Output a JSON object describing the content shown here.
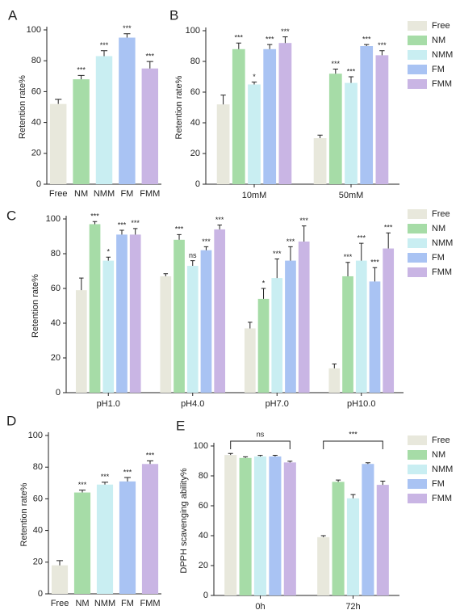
{
  "chart_data": [
    {
      "type": "bar",
      "panel": "A",
      "y_label": "Retention rate%",
      "categories": [
        "Free",
        "NM",
        "NMM",
        "FM",
        "FMM"
      ],
      "values": [
        52,
        68,
        83,
        95,
        75
      ],
      "errors": [
        3,
        2.5,
        3.5,
        2.5,
        4.5
      ],
      "significance": [
        null,
        "***",
        "***",
        "***",
        "***"
      ],
      "colors": [
        "#e8e8dc",
        "#a6dca7",
        "#c9eef2",
        "#a9c3f3",
        "#c9b5e4"
      ],
      "ylim": [
        0,
        100
      ],
      "yticks": [
        0,
        20,
        40,
        60,
        80,
        100
      ]
    },
    {
      "type": "grouped_bar",
      "panel": "B",
      "y_label": "Retention rate%",
      "categories": [
        "10mM",
        "50mM"
      ],
      "series": [
        {
          "name": "Free",
          "color": "#e8e8dc",
          "values": [
            52,
            30
          ],
          "errors": [
            6,
            2
          ],
          "significance": [
            null,
            null
          ]
        },
        {
          "name": "NM",
          "color": "#a6dca7",
          "values": [
            88,
            72
          ],
          "errors": [
            4,
            3
          ],
          "significance": [
            "***",
            "***"
          ]
        },
        {
          "name": "NMM",
          "color": "#c9eef2",
          "values": [
            65,
            66
          ],
          "errors": [
            1.5,
            4
          ],
          "significance": [
            "*",
            "***"
          ]
        },
        {
          "name": "FM",
          "color": "#a9c3f3",
          "values": [
            88,
            90
          ],
          "errors": [
            3,
            1
          ],
          "significance": [
            "***",
            "***"
          ]
        },
        {
          "name": "FMM",
          "color": "#c9b5e4",
          "values": [
            92,
            84
          ],
          "errors": [
            4,
            3
          ],
          "significance": [
            "***",
            "***"
          ]
        }
      ],
      "ylim": [
        0,
        100
      ],
      "yticks": [
        0,
        20,
        40,
        60,
        80,
        100
      ]
    },
    {
      "type": "grouped_bar",
      "panel": "C",
      "y_label": "Retention rate%",
      "categories": [
        "pH1.0",
        "pH4.0",
        "pH7.0",
        "pH10.0"
      ],
      "series": [
        {
          "name": "Free",
          "color": "#e8e8dc",
          "values": [
            59,
            67,
            37,
            14
          ],
          "errors": [
            7,
            1.5,
            3.5,
            2.5
          ],
          "significance": [
            null,
            null,
            null,
            null
          ]
        },
        {
          "name": "NM",
          "color": "#a6dca7",
          "values": [
            97,
            88,
            54,
            67
          ],
          "errors": [
            1.5,
            3,
            6,
            8
          ],
          "significance": [
            "***",
            "***",
            "*",
            "***"
          ]
        },
        {
          "name": "NMM",
          "color": "#c9eef2",
          "values": [
            76,
            73,
            66,
            76
          ],
          "errors": [
            2,
            3,
            11,
            10
          ],
          "significance": [
            "*",
            "ns",
            "***",
            "***"
          ]
        },
        {
          "name": "FM",
          "color": "#a9c3f3",
          "values": [
            91,
            82,
            76,
            64
          ],
          "errors": [
            2.5,
            2,
            8,
            8
          ],
          "significance": [
            "***",
            "***",
            "***",
            "***"
          ]
        },
        {
          "name": "FMM",
          "color": "#c9b5e4",
          "values": [
            91,
            94,
            87,
            83
          ],
          "errors": [
            3.5,
            2.5,
            9,
            9
          ],
          "significance": [
            "***",
            "***",
            "***",
            "***"
          ]
        }
      ],
      "ylim": [
        0,
        100
      ],
      "yticks": [
        0,
        20,
        40,
        60,
        80,
        100
      ]
    },
    {
      "type": "bar",
      "panel": "D",
      "y_label": "Retention rate%",
      "categories": [
        "Free",
        "NM",
        "NMM",
        "FM",
        "FMM"
      ],
      "values": [
        18,
        64,
        69,
        71,
        82
      ],
      "errors": [
        3,
        1.5,
        1.5,
        2.5,
        2
      ],
      "significance": [
        null,
        "***",
        "***",
        "***",
        "***"
      ],
      "colors": [
        "#e8e8dc",
        "#a6dca7",
        "#c9eef2",
        "#a9c3f3",
        "#c9b5e4"
      ],
      "ylim": [
        0,
        100
      ],
      "yticks": [
        0,
        20,
        40,
        60,
        80,
        100
      ]
    },
    {
      "type": "grouped_bar",
      "panel": "E",
      "y_label": "DPPH scavenging ability%",
      "categories": [
        "0h",
        "72h"
      ],
      "series": [
        {
          "name": "Free",
          "color": "#e8e8dc",
          "values": [
            94,
            39
          ],
          "errors": [
            1,
            1
          ]
        },
        {
          "name": "NM",
          "color": "#a6dca7",
          "values": [
            92,
            76
          ],
          "errors": [
            0.8,
            1.2
          ]
        },
        {
          "name": "NMM",
          "color": "#c9eef2",
          "values": [
            93,
            65
          ],
          "errors": [
            0.7,
            2.5
          ]
        },
        {
          "name": "FM",
          "color": "#a9c3f3",
          "values": [
            93,
            88
          ],
          "errors": [
            0.8,
            0.8
          ]
        },
        {
          "name": "FMM",
          "color": "#c9b5e4",
          "values": [
            89,
            74
          ],
          "errors": [
            0.8,
            2.5
          ]
        }
      ],
      "bracket_labels": [
        "ns",
        "***"
      ],
      "ylim": [
        0,
        100
      ],
      "yticks": [
        0,
        20,
        40,
        60,
        80,
        100
      ]
    }
  ]
}
